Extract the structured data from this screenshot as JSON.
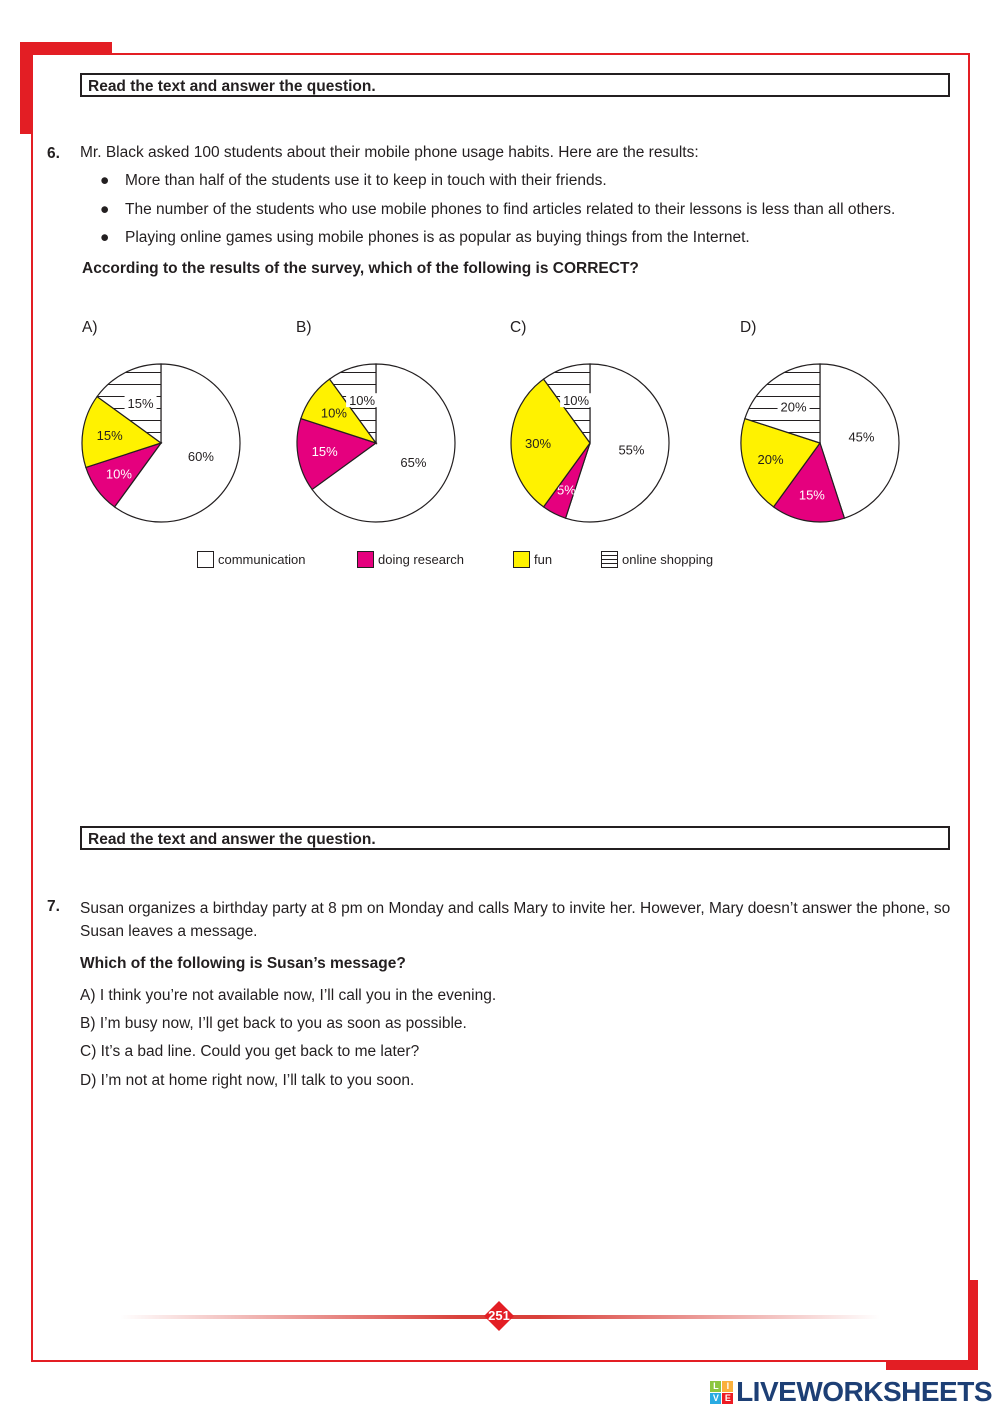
{
  "instruction": "Read the text and answer the question.",
  "q6": {
    "number": "6.",
    "stem": "Mr. Black asked 100 students about their mobile phone usage habits. Here are the results:",
    "bullets": [
      "More than half of the students use it to keep in touch with their friends.",
      "The number of the students who use mobile phones to find articles related to their lessons is less than all others.",
      "Playing online games using mobile phones is as popular as buying things from the Internet."
    ],
    "question": "According to the results of the survey, which of the following is CORRECT?"
  },
  "chart_data": {
    "type": "pie",
    "colors": {
      "communication": "#ffffff",
      "doing research": "#e5007e",
      "fun": "#fff200",
      "online shopping": "hatched"
    },
    "legend": [
      "communication",
      "doing research",
      "fun",
      "online shopping"
    ],
    "legend_placement": "bottom",
    "charts": [
      {
        "label": "A)",
        "values": {
          "communication": 60,
          "doing research": 10,
          "fun": 15,
          "online shopping": 15
        },
        "texts": [
          "60%",
          "10%",
          "15%",
          "15%"
        ]
      },
      {
        "label": "B)",
        "values": {
          "communication": 65,
          "doing research": 15,
          "fun": 10,
          "online shopping": 10
        },
        "texts": [
          "65%",
          "15%",
          "10%",
          "10%"
        ]
      },
      {
        "label": "C)",
        "values": {
          "communication": 55,
          "doing research": 5,
          "fun": 30,
          "online shopping": 10
        },
        "texts": [
          "55%",
          "5%",
          "30%",
          "10%"
        ]
      },
      {
        "label": "D)",
        "values": {
          "communication": 45,
          "doing research": 15,
          "fun": 20,
          "online shopping": 20
        },
        "texts": [
          "45%",
          "15%",
          "20%",
          "20%"
        ]
      }
    ]
  },
  "q7": {
    "number": "7.",
    "stem": "Susan organizes a birthday party at 8 pm on Monday and calls Mary to invite her. However, Mary doesn’t answer the phone, so Susan leaves a message.",
    "question": "Which of the following is Susan’s message?",
    "options": [
      {
        "letter": "A)",
        "text": "I think you’re not available now, I’ll call you in the evening."
      },
      {
        "letter": "B)",
        "text": "I’m busy now, I’ll get back to you as soon as possible."
      },
      {
        "letter": "C)",
        "text": "It’s a bad line. Could you get back to me later?"
      },
      {
        "letter": "D)",
        "text": "I’m not at home right now, I’ll talk to you soon."
      }
    ]
  },
  "page_number": "251",
  "watermark": "LIVEWORKSHEETS",
  "accent_color": "#e31e24"
}
